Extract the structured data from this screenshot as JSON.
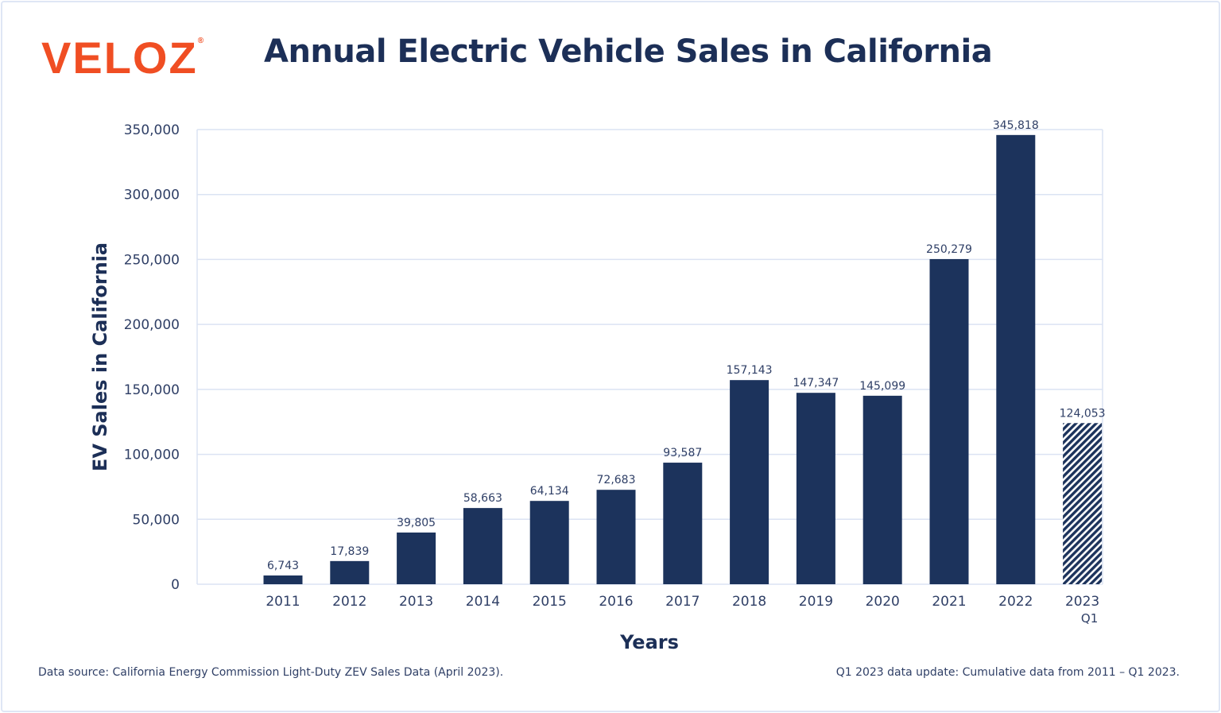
{
  "logo": {
    "text": "VELOZ",
    "mark": "®"
  },
  "colors": {
    "bar": "#1c335c",
    "logo": "#f04e23",
    "grid": "#dbe3f3",
    "text": "#2f3f66"
  },
  "chart_data": {
    "type": "bar",
    "title": "Annual Electric Vehicle Sales in California",
    "xlabel": "Years",
    "ylabel": "EV Sales in California",
    "ylim": [
      0,
      350000
    ],
    "yticks": [
      0,
      50000,
      100000,
      150000,
      200000,
      250000,
      300000,
      350000
    ],
    "ytick_labels": [
      "0",
      "50,000",
      "100,000",
      "150,000",
      "200,000",
      "250,000",
      "300,000",
      "350,000"
    ],
    "grid": true,
    "categories": [
      "2011",
      "2012",
      "2013",
      "2014",
      "2015",
      "2016",
      "2017",
      "2018",
      "2019",
      "2020",
      "2021",
      "2022",
      "2023"
    ],
    "category_sublabels": [
      "",
      "",
      "",
      "",
      "",
      "",
      "",
      "",
      "",
      "",
      "",
      "",
      "Q1"
    ],
    "values": [
      6743,
      17839,
      39805,
      58663,
      64134,
      72683,
      93587,
      157143,
      147347,
      145099,
      250279,
      345818,
      124053
    ],
    "value_labels": [
      "6,743",
      "17,839",
      "39,805",
      "58,663",
      "64,134",
      "72,683",
      "93,587",
      "157,143",
      "147,347",
      "145,099",
      "250,279",
      "345,818",
      "124,053"
    ],
    "hatched": [
      false,
      false,
      false,
      false,
      false,
      false,
      false,
      false,
      false,
      false,
      false,
      false,
      true
    ]
  },
  "footer": {
    "source": "Data source: California Energy Commission Light-Duty ZEV Sales Data (April 2023).",
    "note": "Q1 2023 data update: Cumulative data from 2011 – Q1 2023."
  }
}
